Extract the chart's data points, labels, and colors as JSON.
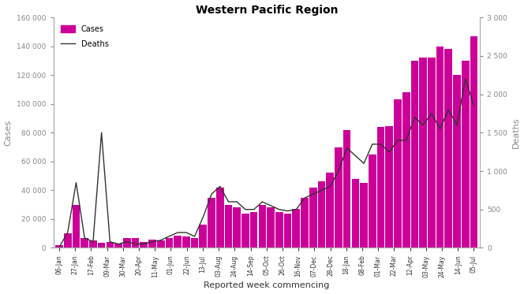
{
  "title": "Western Pacific Region",
  "xlabel": "Reported week commencing",
  "ylabel_left": "Cases",
  "ylabel_right": "Deaths",
  "tick_labels": [
    "06-Jan",
    "27-Jan",
    "17-Feb",
    "09-Mar",
    "30-Mar",
    "20-Apr",
    "11-May",
    "01-Jun",
    "22-Jun",
    "13-Jul",
    "03-Aug",
    "24-Aug",
    "14-Sep",
    "05-Oct",
    "26-Oct",
    "16-Nov",
    "07-Dec",
    "28-Dec",
    "18-Jan",
    "08-Feb",
    "01-Mar",
    "22-Mar",
    "12-Apr",
    "03-May",
    "24-May",
    "14-Jun",
    "05-Jul"
  ],
  "cases_data": [
    2000,
    10000,
    30000,
    7000,
    5000,
    3500,
    4000,
    3000,
    7000,
    7000,
    4000,
    6000,
    5000,
    7000,
    8500,
    8000,
    7000,
    16000,
    35000,
    42000,
    30000,
    28000,
    24000,
    25000,
    30000,
    28000,
    25000,
    24000,
    27000,
    35000,
    42000,
    46000,
    52000,
    70000,
    82000,
    48000,
    45000,
    65000,
    84000,
    84500,
    103000,
    108000,
    130000,
    132000,
    132000,
    140000,
    138000,
    120000,
    130000,
    147000
  ],
  "deaths_data": [
    10,
    200,
    850,
    130,
    80,
    1500,
    80,
    50,
    80,
    50,
    50,
    80,
    100,
    150,
    200,
    200,
    150,
    400,
    700,
    800,
    600,
    600,
    500,
    500,
    600,
    550,
    500,
    480,
    500,
    650,
    700,
    750,
    800,
    1000,
    1300,
    1200,
    1100,
    1350,
    1350,
    1250,
    1400,
    1400,
    1700,
    1600,
    1750,
    1550,
    1800,
    1600,
    2200,
    1850
  ],
  "bar_color": "#CC0099",
  "line_color": "#333333",
  "ylim_left": [
    0,
    160000
  ],
  "ylim_right": [
    0,
    3000
  ],
  "yticks_left": [
    0,
    20000,
    40000,
    60000,
    80000,
    100000,
    120000,
    140000,
    160000
  ],
  "ytick_labels_left": [
    "0",
    "20 000",
    "40 000",
    "60 000",
    "80 000",
    "100 000",
    "120 000",
    "140 000",
    "160 000"
  ],
  "yticks_right": [
    0,
    500,
    1000,
    1500,
    2000,
    2500,
    3000
  ],
  "ytick_labels_right": [
    "0",
    "500",
    "1 000",
    "1 500",
    "2 000",
    "2 500",
    "3 000"
  ],
  "background_color": "#ffffff",
  "legend_cases": "Cases",
  "legend_deaths": "Deaths",
  "title_fontsize": 10,
  "axis_label_fontsize": 8,
  "tick_fontsize": 6.5,
  "xtick_fontsize": 5.5
}
